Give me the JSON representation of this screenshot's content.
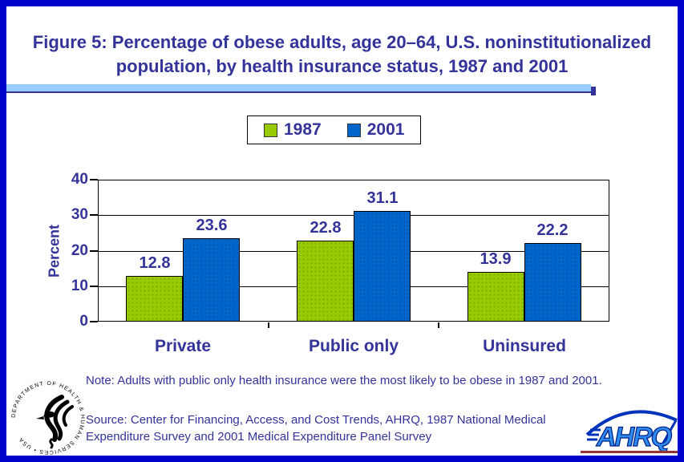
{
  "title": {
    "line1": "Figure 5: Percentage of obese adults, age 20–64, U.S. noninstitutionalized",
    "line2": "population, by health insurance status, 1987 and 2001"
  },
  "chart_data": {
    "type": "bar",
    "categories": [
      "Private",
      "Public only",
      "Uninsured"
    ],
    "series": [
      {
        "name": "1987",
        "color": "#99CC00",
        "values": [
          12.8,
          22.8,
          13.9
        ]
      },
      {
        "name": "2001",
        "color": "#0066CC",
        "values": [
          23.6,
          31.1,
          22.2
        ]
      }
    ],
    "ylabel": "Percent",
    "xlabel": "",
    "ylim": [
      0,
      40
    ],
    "yticks": [
      0,
      10,
      20,
      30,
      40
    ],
    "grid": true,
    "legend_position": "top-center",
    "value_labels": true
  },
  "note": "Note: Adults with public only health insurance were the most likely to be obese in 1987 and 2001.",
  "source": "Source: Center for Financing, Access, and Cost Trends, AHRQ, 1987 National Medical Expenditure Survey and 2001 Medical Expenditure Panel Survey",
  "logos": {
    "hhs_seal_text": "DEPARTMENT OF HEALTH & HUMAN SERVICES • USA",
    "ahrq_text": "AHRQ"
  },
  "colors": {
    "page_border": "#0000CC",
    "heading_text": "#333399",
    "divider_fill": "#99CCFF",
    "divider_shadow": "#333399",
    "bar_1987": "#99CC00",
    "bar_2001": "#0066CC",
    "axis_line": "#000000",
    "logo_underline": "#993333"
  }
}
